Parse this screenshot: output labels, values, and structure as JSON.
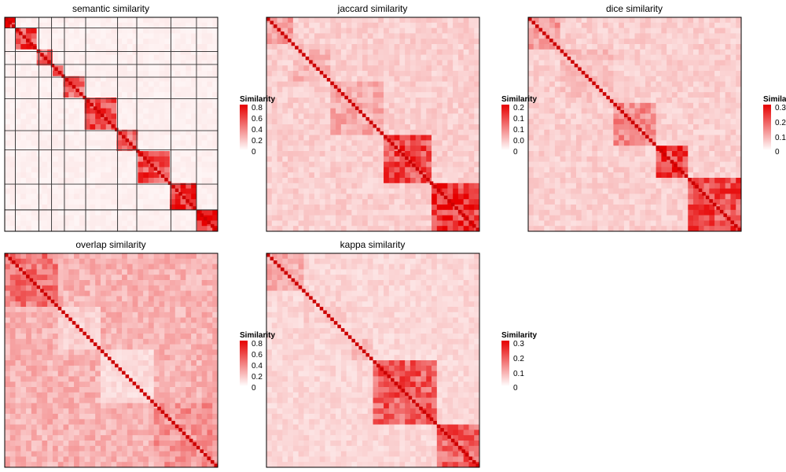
{
  "figure": {
    "panels": [
      {
        "title": "semantic similarity",
        "legend_title": "Similarity",
        "legend_ticks": [
          "0.8",
          "0.6",
          "0.4",
          "0.2",
          "0"
        ],
        "legend_max": 0.8
      },
      {
        "title": "jaccard similarity",
        "legend_title": "Similarity",
        "legend_ticks": [
          "0.2",
          "0.1",
          "0.1",
          "0.0",
          "0"
        ],
        "legend_max": 0.2
      },
      {
        "title": "dice similarity",
        "legend_title": "Similarity",
        "legend_ticks": [
          "0.3",
          "0.2",
          "0.1",
          "0"
        ],
        "legend_max": 0.3
      },
      {
        "title": "overlap similarity",
        "legend_title": "Similarity",
        "legend_ticks": [
          "0.8",
          "0.6",
          "0.4",
          "0.2",
          "0"
        ],
        "legend_max": 0.8
      },
      {
        "title": "kappa similarity",
        "legend_title": "Similarity",
        "legend_ticks": [
          "0.3",
          "0.2",
          "0.1",
          "0"
        ],
        "legend_max": 0.3
      }
    ]
  },
  "chart_data": [
    {
      "type": "heatmap",
      "title": "semantic similarity",
      "legend_title": "Similarity",
      "colorscale": {
        "low": "#ffffff",
        "high": "#e60000",
        "range": [
          0,
          0.8
        ]
      },
      "n_terms": 50,
      "blocks": [
        {
          "start": 0.0,
          "end": 0.05,
          "value": 0.8
        },
        {
          "start": 0.05,
          "end": 0.16,
          "value": 0.6
        },
        {
          "start": 0.16,
          "end": 0.22,
          "value": 0.5
        },
        {
          "start": 0.22,
          "end": 0.28,
          "value": 0.7
        },
        {
          "start": 0.28,
          "end": 0.38,
          "value": 0.5
        },
        {
          "start": 0.38,
          "end": 0.53,
          "value": 0.6
        },
        {
          "start": 0.53,
          "end": 0.62,
          "value": 0.5
        },
        {
          "start": 0.62,
          "end": 0.78,
          "value": 0.6
        },
        {
          "start": 0.78,
          "end": 0.9,
          "value": 0.7
        },
        {
          "start": 0.9,
          "end": 1.0,
          "value": 0.7
        }
      ],
      "background": 0.05
    },
    {
      "type": "heatmap",
      "title": "jaccard similarity",
      "legend_title": "Similarity",
      "colorscale": {
        "low": "#ffffff",
        "high": "#e60000",
        "range": [
          0,
          0.2
        ]
      },
      "blocks": [
        {
          "start": 0.0,
          "end": 0.12,
          "value": 0.08
        },
        {
          "start": 0.12,
          "end": 0.3,
          "value": 0.06
        },
        {
          "start": 0.3,
          "end": 0.55,
          "value": 0.07
        },
        {
          "start": 0.55,
          "end": 0.77,
          "value": 0.15
        },
        {
          "start": 0.77,
          "end": 1.0,
          "value": 0.17
        }
      ],
      "background": 0.04
    },
    {
      "type": "heatmap",
      "title": "dice similarity",
      "legend_title": "Similarity",
      "colorscale": {
        "low": "#ffffff",
        "high": "#e60000",
        "range": [
          0,
          0.3
        ]
      },
      "blocks": [
        {
          "start": 0.0,
          "end": 0.15,
          "value": 0.12
        },
        {
          "start": 0.15,
          "end": 0.4,
          "value": 0.08
        },
        {
          "start": 0.4,
          "end": 0.6,
          "value": 0.14
        },
        {
          "start": 0.6,
          "end": 0.75,
          "value": 0.25
        },
        {
          "start": 0.75,
          "end": 1.0,
          "value": 0.22
        }
      ],
      "background": 0.06
    },
    {
      "type": "heatmap",
      "title": "overlap similarity",
      "legend_title": "Similarity",
      "colorscale": {
        "low": "#ffffff",
        "high": "#e60000",
        "range": [
          0,
          0.8
        ]
      },
      "blocks": [
        {
          "start": 0.0,
          "end": 0.25,
          "value": 0.45
        },
        {
          "start": 0.25,
          "end": 0.45,
          "value": 0.15
        },
        {
          "start": 0.45,
          "end": 0.7,
          "value": 0.12
        },
        {
          "start": 0.7,
          "end": 1.0,
          "value": 0.35
        }
      ],
      "background": 0.25
    },
    {
      "type": "heatmap",
      "title": "kappa similarity",
      "legend_title": "Similarity",
      "colorscale": {
        "low": "#ffffff",
        "high": "#e60000",
        "range": [
          0,
          0.3
        ]
      },
      "blocks": [
        {
          "start": 0.0,
          "end": 0.18,
          "value": 0.1
        },
        {
          "start": 0.18,
          "end": 0.4,
          "value": 0.06
        },
        {
          "start": 0.4,
          "end": 0.5,
          "value": 0.08
        },
        {
          "start": 0.5,
          "end": 0.8,
          "value": 0.2
        },
        {
          "start": 0.8,
          "end": 1.0,
          "value": 0.2
        }
      ],
      "background": 0.05
    }
  ]
}
